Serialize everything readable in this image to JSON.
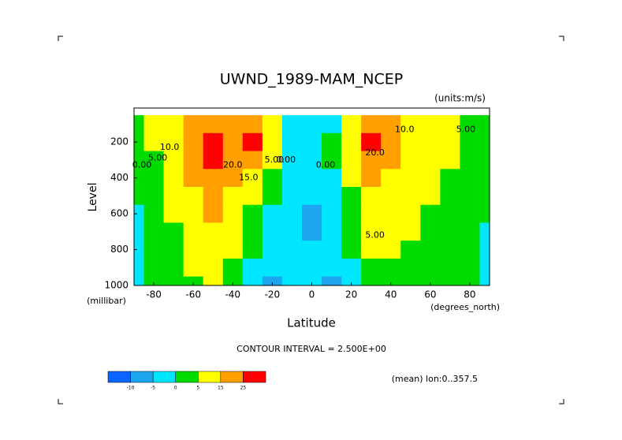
{
  "chart_data": {
    "type": "contour",
    "title": "UWND_1989-MAM_NCEP",
    "subtitle": "(units:m/s)",
    "y_label": "Level",
    "y_unit_label": "(millibar)",
    "x_label": "Latitude",
    "x_unit_label": "(degrees_north)",
    "contour_interval_label": "CONTOUR INTERVAL = 2.500E+00",
    "footnote": "(mean) lon:0..357.5",
    "x": [
      -90,
      -80,
      -70,
      -60,
      -50,
      -40,
      -30,
      -20,
      -10,
      0,
      10,
      20,
      30,
      40,
      50,
      60,
      70,
      80,
      90
    ],
    "y": [
      100,
      200,
      300,
      400,
      500,
      600,
      700,
      800,
      900,
      1000
    ],
    "z": [
      [
        2,
        6,
        12,
        18,
        22,
        22,
        20,
        8,
        -3,
        -4,
        -2,
        5,
        15,
        18,
        12,
        8,
        6,
        4,
        2
      ],
      [
        2,
        5,
        12,
        22,
        28,
        22,
        27,
        8,
        -2,
        -3,
        0,
        12,
        28,
        22,
        14,
        9,
        6,
        4,
        2
      ],
      [
        1,
        4,
        10,
        20,
        27,
        20,
        15,
        5,
        -2,
        -3,
        0,
        10,
        22,
        18,
        12,
        8,
        5,
        3,
        1
      ],
      [
        0,
        3,
        8,
        17,
        22,
        16,
        10,
        2,
        -3,
        -3,
        -1,
        7,
        17,
        14,
        10,
        6,
        4,
        2,
        1
      ],
      [
        0,
        2,
        6,
        14,
        18,
        13,
        7,
        0,
        -4,
        -4,
        -1,
        4,
        12,
        11,
        8,
        5,
        3,
        1,
        0
      ],
      [
        -1,
        2,
        5,
        12,
        15,
        10,
        4,
        -2,
        -4,
        -6,
        -2,
        2,
        9,
        9,
        6,
        4,
        2,
        0,
        0
      ],
      [
        -1,
        1,
        4,
        10,
        13,
        8,
        2,
        -3,
        -4,
        -6,
        -3,
        1,
        7,
        7,
        5,
        3,
        1,
        0,
        -1
      ],
      [
        -1,
        1,
        3,
        8,
        11,
        6,
        0,
        -3,
        -4,
        -5,
        -3,
        0,
        5,
        6,
        4,
        3,
        1,
        0,
        -1
      ],
      [
        -1,
        0,
        2,
        6,
        9,
        4,
        -1,
        -3,
        -5,
        -4,
        -4,
        -1,
        3,
        4,
        3,
        2,
        1,
        0,
        -1
      ],
      [
        -1,
        0,
        1,
        4,
        6,
        2,
        -2,
        -6,
        -5,
        -3,
        -6,
        -2,
        1,
        2,
        2,
        2,
        1,
        0,
        -1
      ]
    ],
    "xlim": [
      -90,
      90
    ],
    "ylim": [
      1000,
      10
    ],
    "xticks": [
      -80,
      -60,
      -40,
      -20,
      0,
      20,
      40,
      60,
      80
    ],
    "yticks": [
      200,
      400,
      600,
      800,
      1000
    ],
    "levels": [
      -10,
      -5,
      0,
      5,
      15,
      25
    ],
    "colors": [
      "#0a64ff",
      "#1ea5f0",
      "#00e6ff",
      "#00dc00",
      "#ffff00",
      "#ffa000",
      "#ff0000"
    ],
    "contour_labels": [
      {
        "text": "10.0",
        "x": -72,
        "y": 230
      },
      {
        "text": "5.00",
        "x": -78,
        "y": 290
      },
      {
        "text": "0.00",
        "x": -86,
        "y": 330
      },
      {
        "text": "20.0",
        "x": -40,
        "y": 330
      },
      {
        "text": "15.0",
        "x": -32,
        "y": 400
      },
      {
        "text": "5.00",
        "x": -19,
        "y": 300
      },
      {
        "text": "0.00",
        "x": -13,
        "y": 300
      },
      {
        "text": "0.00",
        "x": 7,
        "y": 330
      },
      {
        "text": "10.0",
        "x": 47,
        "y": 130
      },
      {
        "text": "5.00",
        "x": 78,
        "y": 130
      },
      {
        "text": "20.0",
        "x": 32,
        "y": 260
      },
      {
        "text": "5.00",
        "x": 32,
        "y": 720
      }
    ]
  }
}
